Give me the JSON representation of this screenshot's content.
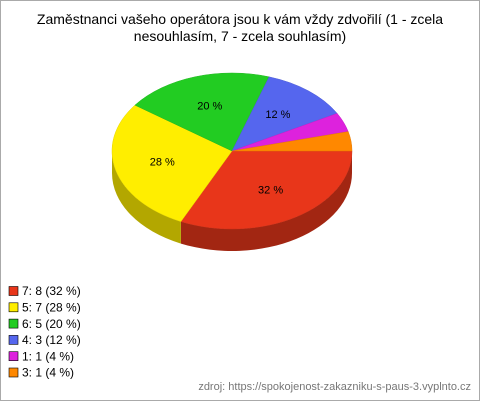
{
  "chart_data": {
    "type": "pie3d",
    "title": "Zaměstnanci vašeho operátora jsou k vám vždy zdvořilí (1 - zcela nesouhlasím, 7 - zcela souhlasím)",
    "categories": [
      "7: 8 (32 %)",
      "5: 7 (28 %)",
      "6: 5 (20 %)",
      "4: 3 (12 %)",
      "1: 1 (4 %)",
      "3: 1 (4 %)"
    ],
    "values": [
      32,
      28,
      20,
      12,
      4,
      4
    ],
    "value_labels": [
      "32 %",
      "28 %",
      "20 %",
      "12 %",
      null,
      null
    ],
    "colors": [
      "#e8361a",
      "#ffee00",
      "#22cc22",
      "#5566ee",
      "#dd22dd",
      "#ff8800"
    ],
    "legend": "bottom-left",
    "source": "zdroj: https://spokojenost-zakazniku-s-paus-3.vyplnto.cz"
  }
}
